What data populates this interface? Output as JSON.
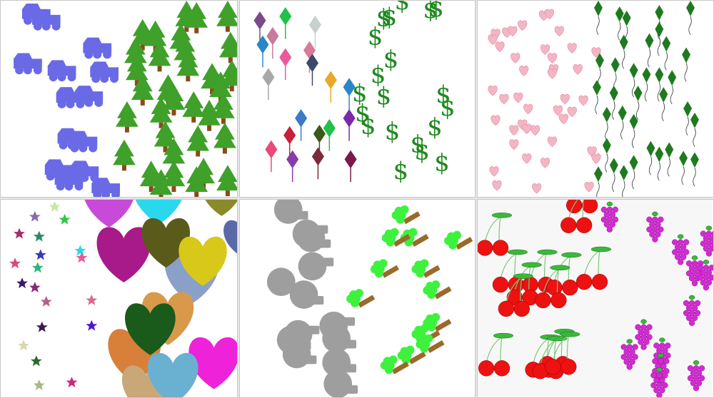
{
  "figure": {
    "panels": [
      {
        "id": "p1",
        "left": "jeep",
        "right": "pine-tree",
        "left_color": "#6a6ae6",
        "right_color": "#3fa02a"
      },
      {
        "id": "p2",
        "left": "balloon",
        "right": "dollar-sign",
        "right_color": "#1f8a1f",
        "dollar_glyph": "$"
      },
      {
        "id": "p3",
        "left": "heart",
        "right": "kite",
        "left_color": "#f4b6c4",
        "right_color": "#1f7a1f"
      },
      {
        "id": "p4",
        "left": "star",
        "right": "big-heart"
      },
      {
        "id": "p5",
        "left": "mushroom",
        "right": "tree",
        "left_color": "#9e9e9e",
        "right_color": "#3df23d"
      },
      {
        "id": "p6",
        "left": "cherry",
        "right": "grapes",
        "left_color": "#ee1111",
        "right_color": "#d42ad4"
      }
    ]
  }
}
